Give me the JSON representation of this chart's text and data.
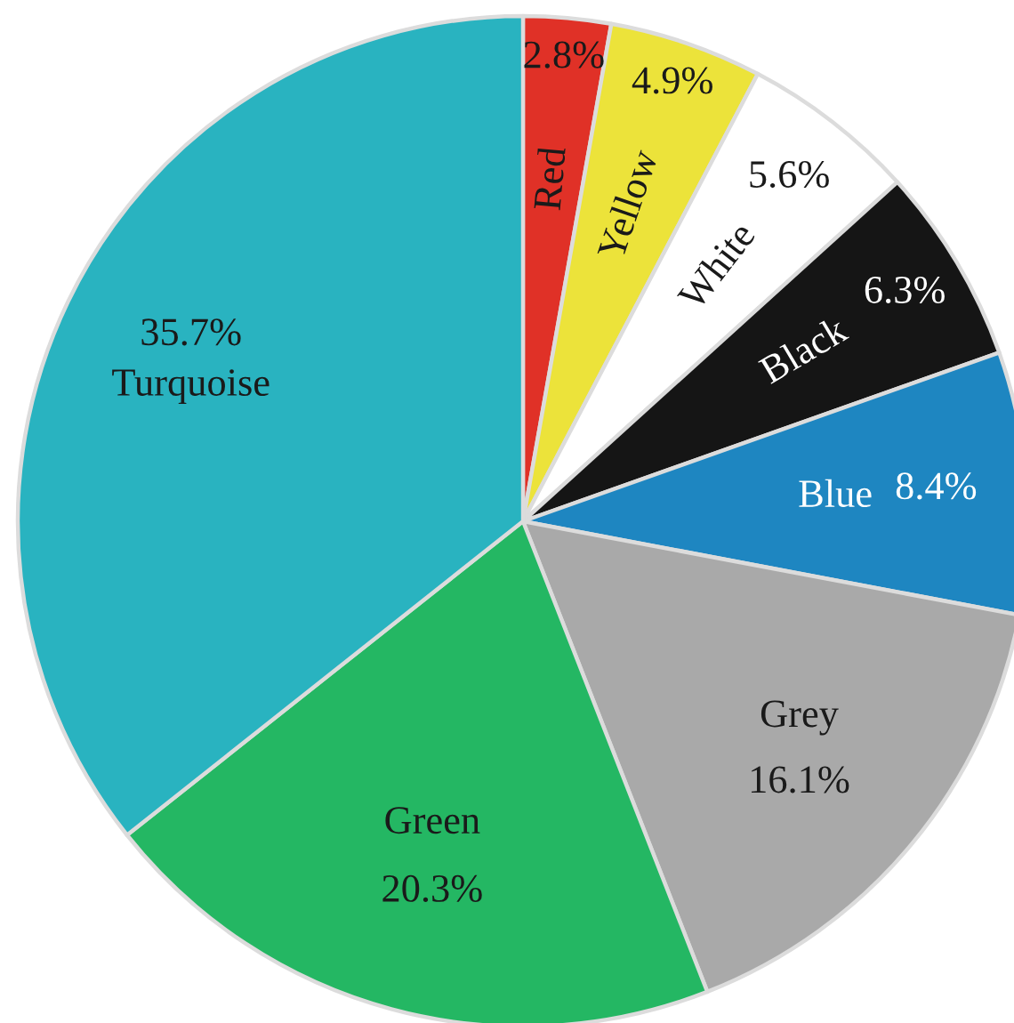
{
  "chart_data": {
    "type": "pie",
    "categories": [
      "Red",
      "Yellow",
      "White",
      "Black",
      "Blue",
      "Grey",
      "Green",
      "Turquoise"
    ],
    "values": [
      2.8,
      4.9,
      5.6,
      6.3,
      8.4,
      16.1,
      20.3,
      35.7
    ],
    "value_labels": [
      "2.8%",
      "4.9%",
      "5.6%",
      "6.3%",
      "8.4%",
      "16.1%",
      "20.3%",
      "35.7%"
    ],
    "colors": [
      "#e03127",
      "#ece33a",
      "#ffffff",
      "#151515",
      "#1e86c1",
      "#a9a9a9",
      "#24b763",
      "#29b3c0"
    ],
    "legend": false
  }
}
